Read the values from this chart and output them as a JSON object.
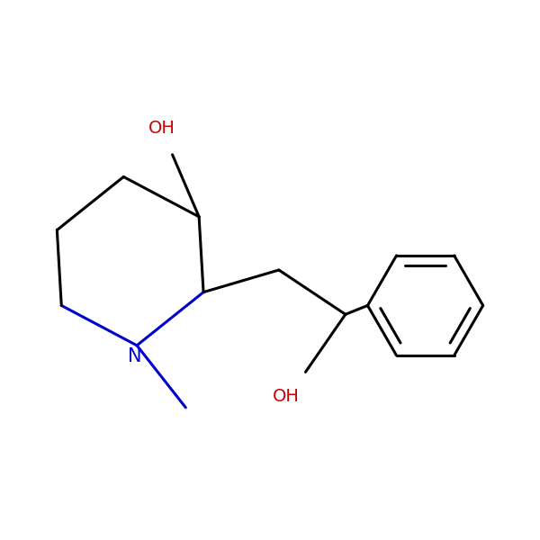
{
  "background_color": "#ffffff",
  "bond_color": "#000000",
  "bond_width": 2.2,
  "n_color": "#0000cc",
  "o_color": "#cc0000",
  "font_size": 14,
  "figsize": [
    6.0,
    6.0
  ],
  "dpi": 100,
  "xlim": [
    0.5,
    6.5
  ],
  "ylim": [
    1.0,
    5.5
  ]
}
